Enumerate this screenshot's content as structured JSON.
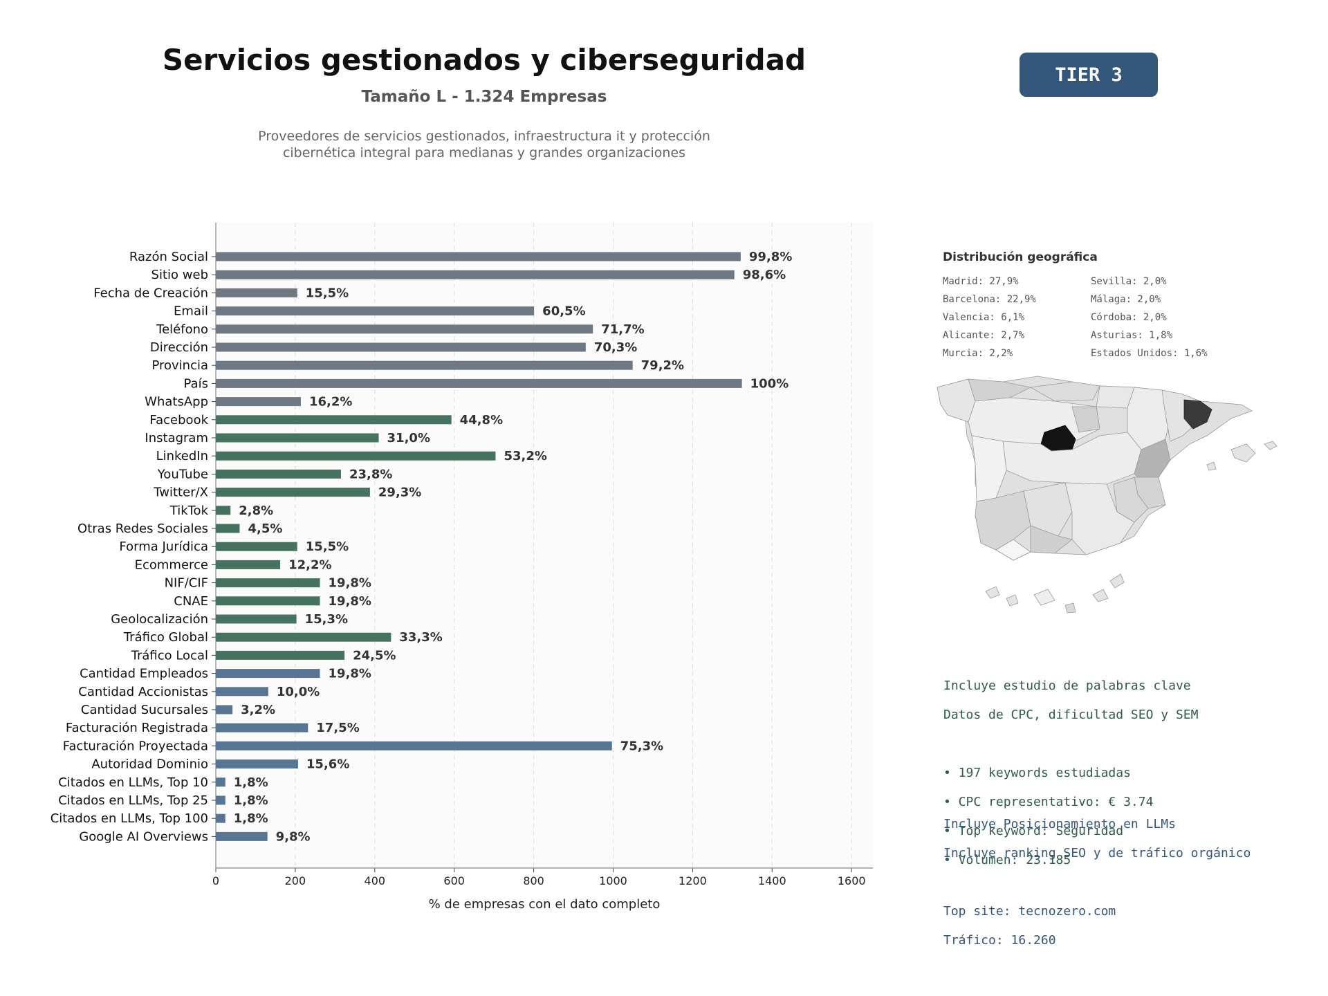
{
  "header": {
    "title": "Servicios gestionados y ciberseguridad",
    "subtitle": "Tamaño L - 1.324 Empresas",
    "description_lines": [
      "Proveedores de servicios gestionados, infraestructura it y protección",
      "cibernética integral para medianas y grandes organizaciones"
    ],
    "tier_badge": "TIER 3"
  },
  "colors": {
    "gray": "#6f7984",
    "green": "#46735f",
    "blue": "#587694",
    "badge": "#33567b"
  },
  "chart_data": {
    "type": "bar",
    "orientation": "horizontal",
    "xlabel": "% de empresas con el dato completo",
    "xlim": [
      0,
      1650
    ],
    "xticks": [
      0,
      200,
      400,
      600,
      800,
      1000,
      1200,
      1400,
      1600
    ],
    "grid": "vertical dashed",
    "total": 1324,
    "bars": [
      {
        "label": "Razón Social",
        "value": 1321,
        "pct_label": "99,8%",
        "group": "gray"
      },
      {
        "label": "Sitio web",
        "value": 1305,
        "pct_label": "98,6%",
        "group": "gray"
      },
      {
        "label": "Fecha de Creación",
        "value": 205,
        "pct_label": "15,5%",
        "group": "gray"
      },
      {
        "label": "Email",
        "value": 801,
        "pct_label": "60,5%",
        "group": "gray"
      },
      {
        "label": "Teléfono",
        "value": 949,
        "pct_label": "71,7%",
        "group": "gray"
      },
      {
        "label": "Dirección",
        "value": 931,
        "pct_label": "70,3%",
        "group": "gray"
      },
      {
        "label": "Provincia",
        "value": 1049,
        "pct_label": "79,2%",
        "group": "gray"
      },
      {
        "label": "País",
        "value": 1324,
        "pct_label": "100%",
        "group": "gray"
      },
      {
        "label": "WhatsApp",
        "value": 214,
        "pct_label": "16,2%",
        "group": "gray"
      },
      {
        "label": "Facebook",
        "value": 593,
        "pct_label": "44,8%",
        "group": "green"
      },
      {
        "label": "Instagram",
        "value": 410,
        "pct_label": "31,0%",
        "group": "green"
      },
      {
        "label": "LinkedIn",
        "value": 704,
        "pct_label": "53,2%",
        "group": "green"
      },
      {
        "label": "YouTube",
        "value": 315,
        "pct_label": "23,8%",
        "group": "green"
      },
      {
        "label": "Twitter/X",
        "value": 388,
        "pct_label": "29,3%",
        "group": "green"
      },
      {
        "label": "TikTok",
        "value": 37,
        "pct_label": "2,8%",
        "group": "green"
      },
      {
        "label": "Otras Redes Sociales",
        "value": 60,
        "pct_label": "4,5%",
        "group": "green"
      },
      {
        "label": "Forma Jurídica",
        "value": 205,
        "pct_label": "15,5%",
        "group": "green"
      },
      {
        "label": "Ecommerce",
        "value": 162,
        "pct_label": "12,2%",
        "group": "green"
      },
      {
        "label": "NIF/CIF",
        "value": 262,
        "pct_label": "19,8%",
        "group": "green"
      },
      {
        "label": "CNAE",
        "value": 262,
        "pct_label": "19,8%",
        "group": "green"
      },
      {
        "label": "Geolocalización",
        "value": 203,
        "pct_label": "15,3%",
        "group": "green"
      },
      {
        "label": "Tráfico Global",
        "value": 441,
        "pct_label": "33,3%",
        "group": "green"
      },
      {
        "label": "Tráfico Local",
        "value": 324,
        "pct_label": "24,5%",
        "group": "green"
      },
      {
        "label": "Cantidad Empleados",
        "value": 262,
        "pct_label": "19,8%",
        "group": "blue"
      },
      {
        "label": "Cantidad Accionistas",
        "value": 132,
        "pct_label": "10,0%",
        "group": "blue"
      },
      {
        "label": "Cantidad Sucursales",
        "value": 42,
        "pct_label": "3,2%",
        "group": "blue"
      },
      {
        "label": "Facturación Registrada",
        "value": 232,
        "pct_label": "17,5%",
        "group": "blue"
      },
      {
        "label": "Facturación Proyectada",
        "value": 997,
        "pct_label": "75,3%",
        "group": "blue"
      },
      {
        "label": "Autoridad Dominio",
        "value": 207,
        "pct_label": "15,6%",
        "group": "blue"
      },
      {
        "label": "Citados en LLMs, Top 10",
        "value": 24,
        "pct_label": "1,8%",
        "group": "blue"
      },
      {
        "label": "Citados en LLMs, Top 25",
        "value": 24,
        "pct_label": "1,8%",
        "group": "blue"
      },
      {
        "label": "Citados en LLMs, Top 100",
        "value": 24,
        "pct_label": "1,8%",
        "group": "blue"
      },
      {
        "label": "Google AI Overviews",
        "value": 130,
        "pct_label": "9,8%",
        "group": "blue"
      }
    ]
  },
  "geo": {
    "title": "Distribución geográfica",
    "items": [
      "Madrid: 27,9%",
      "Sevilla: 2,0%",
      "Barcelona: 22,9%",
      "Málaga: 2,0%",
      "Valencia: 6,1%",
      "Córdoba: 2,0%",
      "Alicante: 2,7%",
      "Asturias: 1,8%",
      "Murcia: 2,2%",
      "Estados Unidos: 1,6%"
    ]
  },
  "keywords": {
    "lines": [
      "Incluye estudio de palabras clave",
      "Datos de CPC, dificultad SEO y SEM",
      "",
      "• 197 keywords estudiadas",
      "• CPC representativo: € 3.74",
      "• Top keyword: Seguridad",
      "• Volumen: 23.185"
    ]
  },
  "llm": {
    "lines": [
      "Incluye Posicionamiento en LLMs",
      "Incluye ranking SEO y de tráfico orgánico",
      "",
      "Top site: tecnozero.com",
      "Tráfico: 16.260"
    ]
  }
}
